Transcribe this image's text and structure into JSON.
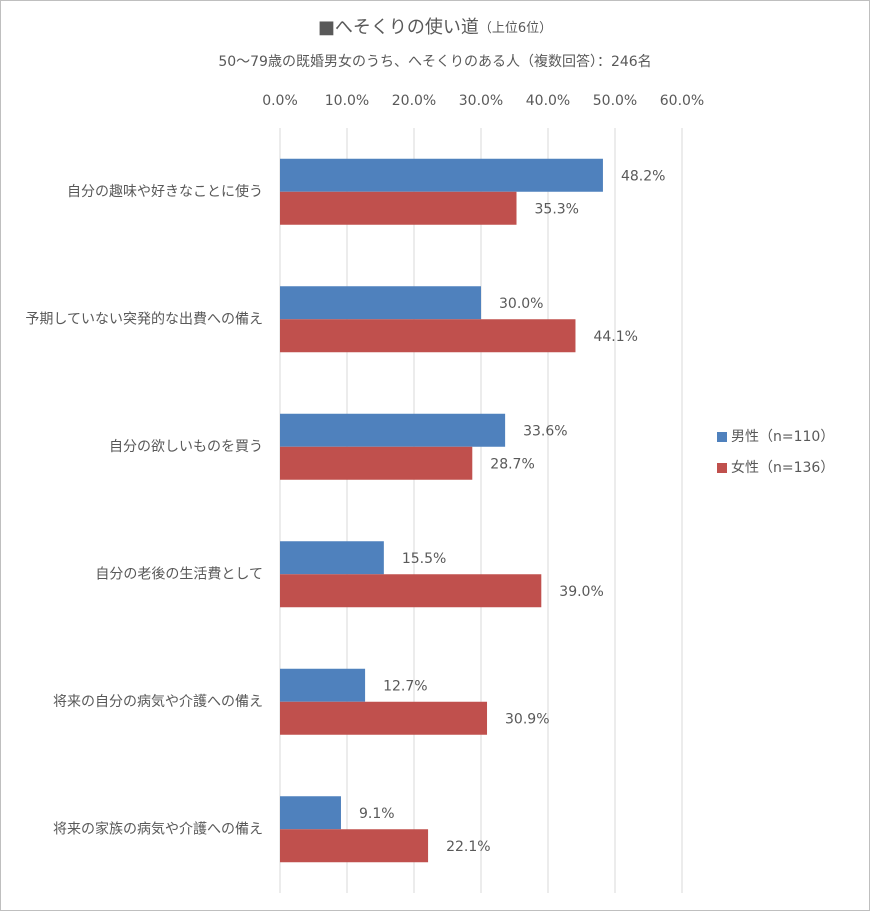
{
  "chart_data": {
    "type": "bar",
    "orientation": "horizontal",
    "title": "■へそくりの使い道",
    "title_note": "（上位6位）",
    "subtitle": "50～79歳の既婚男女のうち、へそくりのある人（複数回答）：246名",
    "categories": [
      "自分の趣味や好きなことに使う",
      "予期していない突発的な出費への備え",
      "自分の欲しいものを買う",
      "自分の老後の生活費として",
      "将来の自分の病気や介護への備え",
      "将来の家族の病気や介護への備え"
    ],
    "series": [
      {
        "name": "男性（n=110）",
        "color": "#4f81bd",
        "values": [
          48.2,
          30.0,
          33.6,
          15.5,
          12.7,
          9.1
        ],
        "value_labels": [
          "48.2%",
          "30.0%",
          "33.6%",
          "15.5%",
          "12.7%",
          "9.1%"
        ]
      },
      {
        "name": "女性（n=136）",
        "color": "#c0504d",
        "values": [
          35.3,
          44.1,
          28.7,
          39.0,
          30.9,
          22.1
        ],
        "value_labels": [
          "35.3%",
          "44.1%",
          "28.7%",
          "39.0%",
          "30.9%",
          "22.1%"
        ]
      }
    ],
    "xlim": [
      0,
      60
    ],
    "xticks": [
      {
        "value": 0,
        "label": "0.0%"
      },
      {
        "value": 10,
        "label": "10.0%"
      },
      {
        "value": 20,
        "label": "20.0%"
      },
      {
        "value": 30,
        "label": "30.0%"
      },
      {
        "value": 40,
        "label": "40.0%"
      },
      {
        "value": 50,
        "label": "50.0%"
      },
      {
        "value": 60,
        "label": "60.0%"
      }
    ],
    "grid": true,
    "legend": "right"
  }
}
